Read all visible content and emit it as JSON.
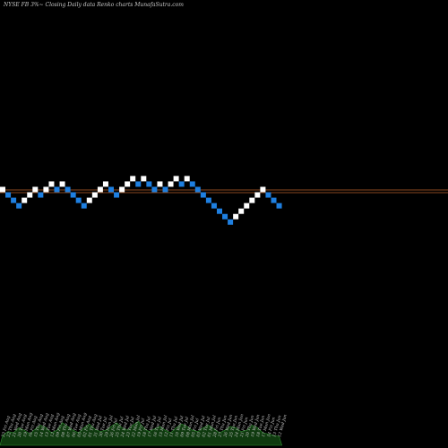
{
  "title": "NYSE FB 3%~  Closing Daily data  Renko  charts MunafaSutra.com",
  "colors": {
    "background": "#000000",
    "up_brick": "#ffffff",
    "down_brick": "#1e7fe0",
    "reference_line": "#b8622a",
    "volume_fill": "#0f3a0f",
    "volume_stroke": "#2f8f2f",
    "label_text": "#c8c8c8"
  },
  "chart_data": {
    "type": "renko",
    "title": "NYSE FB 3%~  Closing Daily data  Renko  charts MunafaSutra.com",
    "brick_levels": [
      0,
      -1,
      -2,
      -3,
      -2,
      -1,
      0,
      -1,
      0,
      1,
      0,
      1,
      0,
      -1,
      -2,
      -3,
      -2,
      -1,
      0,
      1,
      0,
      -1,
      0,
      1,
      2,
      1,
      2,
      1,
      0,
      1,
      0,
      1,
      2,
      1,
      2,
      1,
      0,
      -1,
      -2,
      -3,
      -4,
      -5,
      -6,
      -5,
      -4,
      -3,
      -2,
      -1,
      0,
      -1,
      -2,
      -3
    ],
    "brick_directions": [
      "up",
      "down",
      "down",
      "down",
      "up",
      "up",
      "up",
      "down",
      "up",
      "up",
      "down",
      "up",
      "down",
      "down",
      "down",
      "down",
      "up",
      "up",
      "up",
      "up",
      "down",
      "down",
      "up",
      "up",
      "up",
      "down",
      "up",
      "down",
      "down",
      "up",
      "down",
      "up",
      "up",
      "down",
      "up",
      "down",
      "down",
      "down",
      "down",
      "down",
      "down",
      "down",
      "down",
      "up",
      "up",
      "up",
      "up",
      "up",
      "up",
      "down",
      "down",
      "down"
    ],
    "reference_lines": [
      0,
      -0.5
    ],
    "volume_profile": [
      0.4,
      0.55,
      0.5,
      0.7,
      0.6,
      0.45,
      0.65,
      0.8,
      0.7,
      0.5,
      0.6,
      0.9,
      0.75,
      0.6,
      0.5,
      0.7,
      0.85,
      0.65,
      0.55,
      0.6,
      0.75,
      0.9,
      0.7,
      0.6,
      0.8,
      0.95,
      0.7,
      0.55,
      0.65,
      0.75,
      0.6,
      0.5,
      0.7,
      0.85,
      0.75,
      0.6,
      0.55,
      0.7,
      0.8,
      0.65,
      0.5,
      0.6,
      0.75,
      0.7,
      0.55,
      0.6,
      0.8,
      0.7,
      0.5,
      0.45,
      0.4,
      0.35
    ],
    "date_labels": [
      "23 Fri Aug",
      "22 Thu Aug",
      "21 Wed Aug",
      "20 Tue Aug",
      "19 Mon Aug",
      "16 Fri Aug",
      "15 Thu Aug",
      "14 Wed Aug",
      "13 Tue Aug",
      "12 Mon Aug",
      "09 Fri Aug",
      "08 Thu Aug",
      "07 Wed Aug",
      "06 Tue Aug",
      "05 Mon Aug",
      "02 Fri Aug",
      "01 Thu Aug",
      "31 Wed Jul",
      "30 Tue Jul",
      "29 Mon Jul",
      "26 Fri Jul",
      "25 Thu Jul",
      "24 Wed Jul",
      "23 Tue Jul",
      "22 Mon Jul",
      "19 Fri Jul",
      "18 Thu Jul",
      "17 Wed Jul",
      "16 Tue Jul",
      "15 Mon Jul",
      "12 Fri Jul",
      "11 Thu Jul",
      "10 Wed Jul",
      "09 Tue Jul",
      "08 Mon Jul",
      "05 Fri Jul",
      "03 Wed Jul",
      "02 Tue Jul",
      "01 Mon Jul",
      "28 Fri Jun",
      "27 Thu Jun",
      "26 Wed Jun",
      "25 Tue Jun",
      "24 Mon Jun",
      "21 Fri Jun",
      "20 Thu Jun",
      "19 Wed Jun",
      "18 Tue Jun",
      "17 Mon Jun",
      "14 Fri Jun",
      "13 Thu Jun",
      "12 Wed Jun"
    ]
  }
}
